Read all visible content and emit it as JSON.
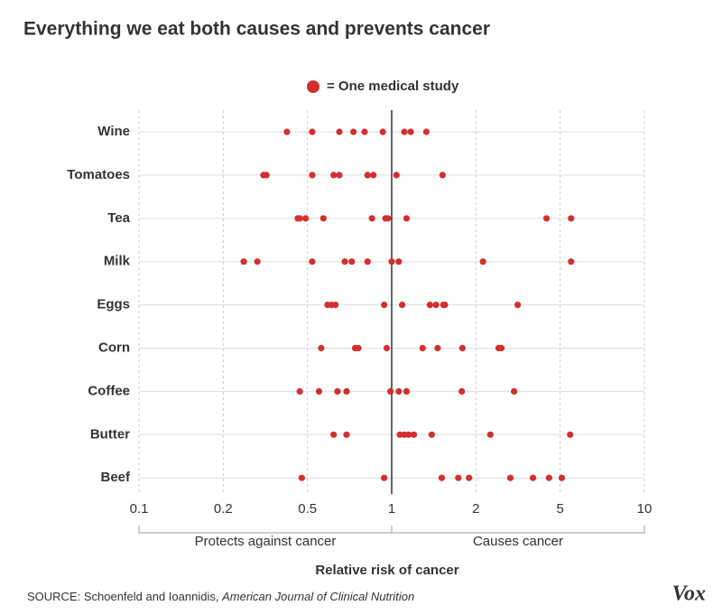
{
  "chart_data": {
    "type": "dot",
    "title": "Everything we eat both causes and prevents cancer",
    "legend_label": "= One medical study",
    "color": "#d32f2f",
    "categories": [
      "Wine",
      "Tomatoes",
      "Tea",
      "Milk",
      "Eggs",
      "Corn",
      "Coffee",
      "Butter",
      "Beef"
    ],
    "values": [
      [
        0.4,
        0.52,
        0.65,
        0.73,
        0.8,
        0.93,
        1.11,
        1.17,
        1.33
      ],
      [
        0.31,
        0.32,
        0.52,
        0.62,
        0.65,
        0.82,
        0.86,
        1.04,
        1.52
      ],
      [
        0.45,
        0.46,
        0.49,
        0.57,
        0.85,
        0.95,
        0.97,
        1.13,
        4.31,
        5.47
      ],
      [
        0.25,
        0.29,
        0.52,
        0.68,
        0.72,
        0.82,
        1.0,
        1.06,
        2.16,
        5.47
      ],
      [
        0.59,
        0.61,
        0.63,
        0.94,
        1.09,
        1.37,
        1.44,
        1.53,
        1.55,
        3.15
      ],
      [
        0.56,
        0.74,
        0.76,
        0.96,
        1.29,
        1.46,
        1.79,
        2.56,
        2.64
      ],
      [
        0.46,
        0.55,
        0.64,
        0.69,
        0.99,
        1.06,
        1.13,
        1.78,
        3.03
      ],
      [
        0.62,
        0.69,
        1.07,
        1.11,
        1.15,
        1.2,
        1.39,
        2.34,
        5.43
      ],
      [
        0.47,
        0.94,
        1.51,
        1.73,
        1.89,
        2.91,
        3.72,
        4.43,
        5.07
      ]
    ],
    "x_scale": "log",
    "xlim": [
      0.1,
      10
    ],
    "xticks": [
      0.1,
      0.2,
      0.5,
      1,
      2,
      5,
      10
    ],
    "reference_line": 1,
    "grid": true,
    "annotations": [
      "Protects against cancer",
      "Causes cancer"
    ],
    "xlabel": "Relative risk of cancer",
    "source": "SOURCE: Schoenfeld and Ioannidis,",
    "source_journal": "American Journal of Clinical Nutrition",
    "brand": "Vox"
  }
}
